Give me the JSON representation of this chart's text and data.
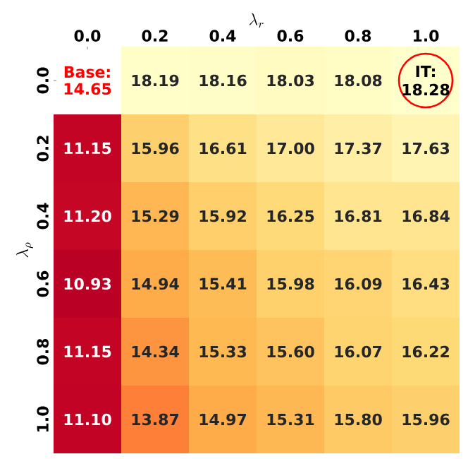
{
  "chart_data": {
    "type": "heatmap",
    "xlabel": "\\lambda_r",
    "ylabel": "\\lambda_\\rho",
    "categories": [
      "0.0",
      "0.2",
      "0.4",
      "0.6",
      "0.8",
      "1.0"
    ],
    "y_categories": [
      "0.0",
      "0.2",
      "0.4",
      "0.6",
      "0.8",
      "1.0"
    ],
    "cells": [
      [
        null,
        18.19,
        18.16,
        18.03,
        18.08,
        18.28
      ],
      [
        11.15,
        15.96,
        16.61,
        17.0,
        17.37,
        17.63
      ],
      [
        11.2,
        15.29,
        15.92,
        16.25,
        16.81,
        16.84
      ],
      [
        10.93,
        14.94,
        15.41,
        15.98,
        16.09,
        16.43
      ],
      [
        11.15,
        14.34,
        15.33,
        15.6,
        16.07,
        16.22
      ],
      [
        11.1,
        13.87,
        14.97,
        15.31,
        15.8,
        15.96
      ]
    ],
    "cell_labels": [
      [
        "Base: 14.65",
        "18.19",
        "18.16",
        "18.03",
        "18.08",
        "18.28"
      ],
      [
        "11.15",
        "15.96",
        "16.61",
        "17.00",
        "17.37",
        "17.63"
      ],
      [
        "11.20",
        "15.29",
        "15.92",
        "16.25",
        "16.81",
        "16.84"
      ],
      [
        "10.93",
        "14.94",
        "15.41",
        "15.98",
        "16.09",
        "16.43"
      ],
      [
        "11.15",
        "14.34",
        "15.33",
        "15.60",
        "16.07",
        "16.22"
      ],
      [
        "11.10",
        "13.87",
        "14.97",
        "15.31",
        "15.80",
        "15.96"
      ]
    ],
    "annotations": [
      {
        "text": "IT:",
        "x": "1.0",
        "y": "0.0"
      }
    ]
  }
}
